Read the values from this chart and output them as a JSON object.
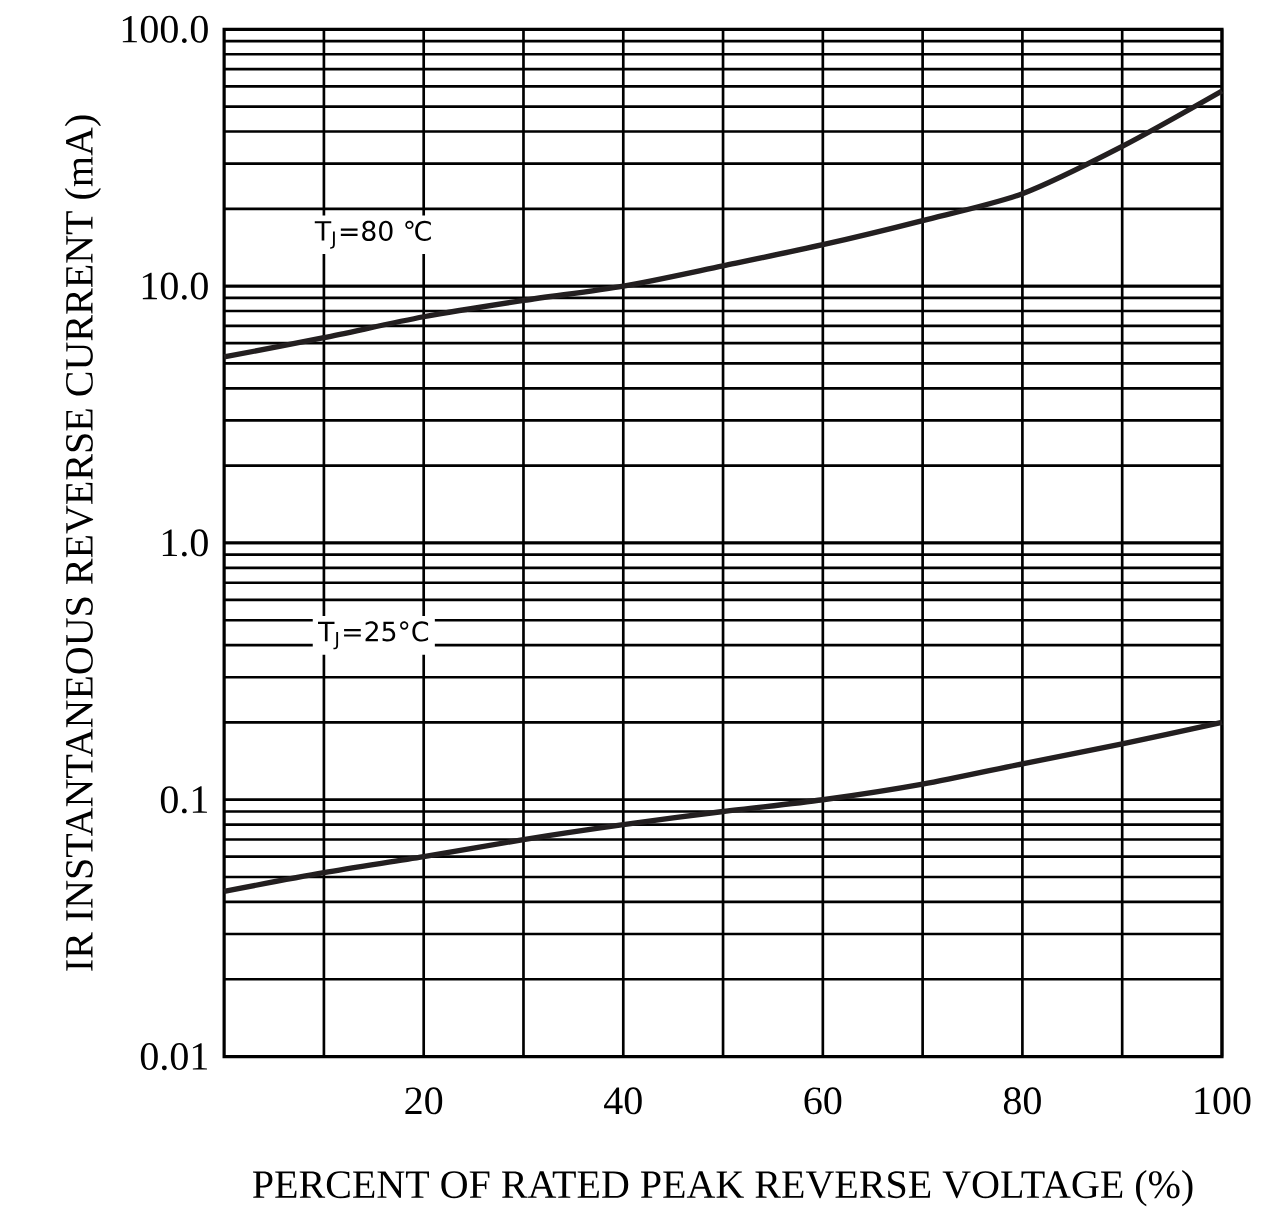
{
  "chart_data": {
    "type": "line",
    "xlabel": "PERCENT OF RATED PEAK REVERSE VOLTAGE (%)",
    "ylabel": "IR INSTANTANEOUS REVERSE CURRENT (mA)",
    "log": "y",
    "grid": true,
    "marker": "none",
    "line_style": "solid",
    "xlim": [
      0,
      100
    ],
    "ylim": [
      0.01,
      100
    ],
    "xticks": [
      {
        "value": 10,
        "label": null
      },
      20,
      {
        "value": 30,
        "label": null
      },
      40,
      {
        "value": 50,
        "label": null
      },
      60,
      {
        "value": 70,
        "label": null
      },
      80,
      {
        "value": 90,
        "label": null
      },
      100
    ],
    "yticks": [
      {
        "value": 0.01,
        "label": "0.01"
      },
      {
        "value": 0.1,
        "label": "0.1"
      },
      {
        "value": 1,
        "label": "1.0"
      },
      {
        "value": 10,
        "label": "10.0"
      },
      {
        "value": 100,
        "label": "100.0"
      }
    ],
    "x": [
      0,
      10,
      20,
      30,
      40,
      50,
      60,
      70,
      80,
      90,
      100
    ],
    "series": [
      {
        "color": "#231f20",
        "values": [
          5.3,
          6.3,
          7.6,
          8.8,
          10,
          12,
          14.5,
          18,
          22.9,
          35,
          57.5
        ]
      },
      {
        "color": "#231f20",
        "values": [
          0.044,
          0.052,
          0.06,
          0.07,
          0.08,
          0.09,
          0.1,
          0.115,
          0.138,
          0.165,
          0.2
        ]
      }
    ],
    "annotations": [
      "T$_{J}$=80 ℃",
      "T$_{J}$=25°C"
    ]
  }
}
